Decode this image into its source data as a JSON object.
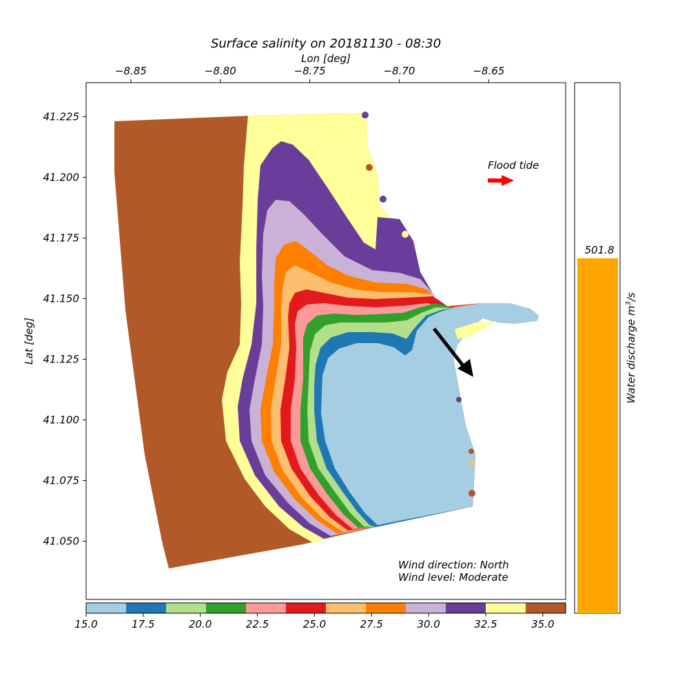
{
  "title": "Surface salinity on 20181130 - 08:30",
  "axes": {
    "xlabel": "Lon [deg]",
    "ylabel": "Lat [deg]",
    "xlim": [
      -8.875,
      -8.607
    ],
    "ylim": [
      41.026,
      41.239
    ],
    "xticks": [
      -8.85,
      -8.8,
      -8.75,
      -8.7,
      -8.65
    ],
    "xtick_labels": [
      "−8.85",
      "−8.80",
      "−8.75",
      "−8.70",
      "−8.65"
    ],
    "yticks": [
      41.225,
      41.2,
      41.175,
      41.15,
      41.125,
      41.1,
      41.075,
      41.05
    ],
    "ytick_labels": [
      "41.225",
      "41.200",
      "41.175",
      "41.150",
      "41.125",
      "41.100",
      "41.075",
      "41.050"
    ]
  },
  "annotations": {
    "tide_label": "Flood tide",
    "tide_arrow_color": "#ff0000",
    "wind_direction": "Wind direction: North",
    "wind_level": "Wind level: Moderate",
    "wind_arrow_color": "#000000"
  },
  "colorbar": {
    "range": [
      15.0,
      36.0
    ],
    "tick_values": [
      15.0,
      17.5,
      20.0,
      22.5,
      25.0,
      27.5,
      30.0,
      32.5,
      35.0
    ],
    "tick_labels": [
      "15.0",
      "17.5",
      "20.0",
      "22.5",
      "25.0",
      "27.5",
      "30.0",
      "32.5",
      "35.0"
    ],
    "colors": [
      "#a6cee3",
      "#1f78b4",
      "#b2df8a",
      "#33a02c",
      "#fb9a99",
      "#e31a1c",
      "#fdbf6f",
      "#ff7f00",
      "#cab2d6",
      "#6a3d9a",
      "#ffff99",
      "#b15928"
    ]
  },
  "chart_data": {
    "type": "bar",
    "categories": [
      ""
    ],
    "values": [
      501.8
    ],
    "value_label": "501.8",
    "ylabel": "Water discharge m³/s",
    "ylabel_text": "Water discharge m",
    "ylabel_sup": "3",
    "ylabel_tail": "/s",
    "ylim": [
      0,
      750
    ],
    "bar_color": "#ffa500"
  }
}
